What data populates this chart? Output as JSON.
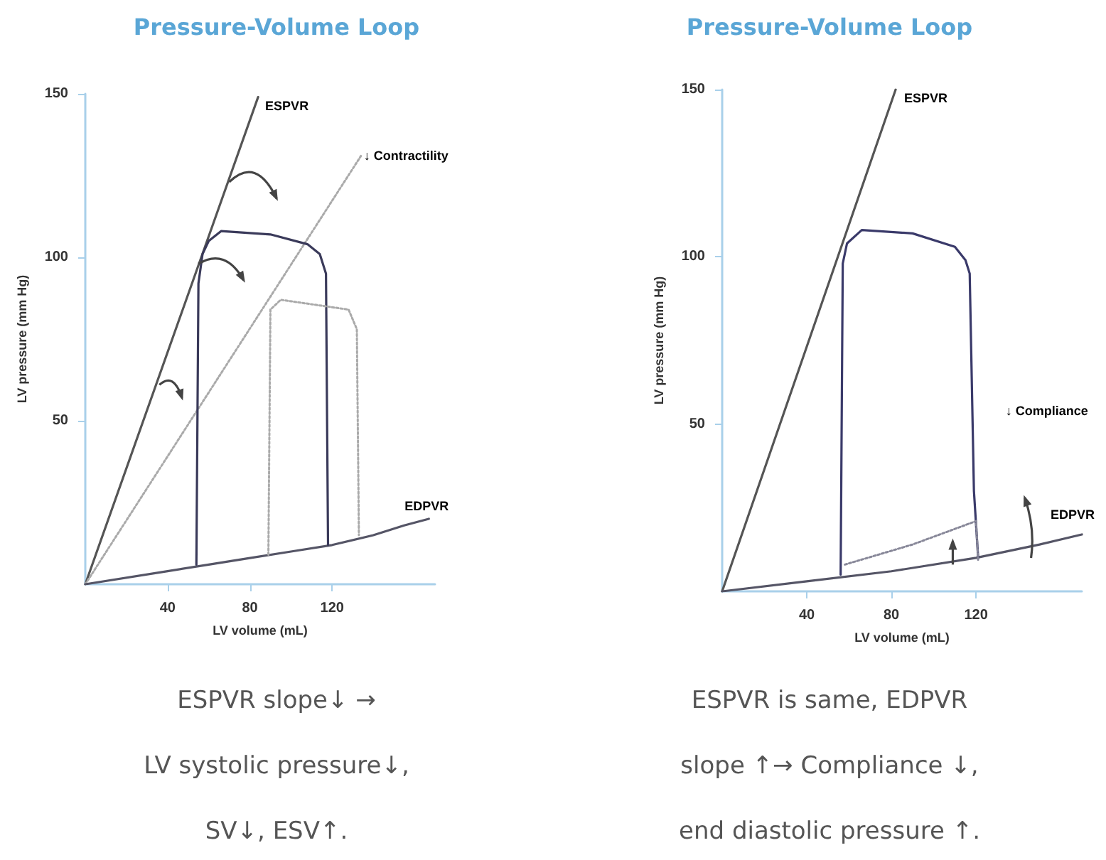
{
  "chart_data": [
    {
      "type": "line",
      "title": "Pressure-Volume Loop",
      "xlabel": "LV volume (mL)",
      "ylabel": "LV pressure (mm Hg)",
      "xlim": [
        0,
        170
      ],
      "ylim": [
        0,
        150
      ],
      "xticks": [
        40,
        80,
        120
      ],
      "yticks": [
        50,
        100,
        150
      ],
      "grid": false,
      "marker": "none",
      "line_style": "solid",
      "series": [
        {
          "color": "#555555",
          "x": [
            0,
            84
          ],
          "values": [
            0,
            149
          ]
        },
        {
          "color": "#aaaaaa",
          "line_style": "dotted",
          "x": [
            0,
            134
          ],
          "values": [
            0,
            131
          ]
        },
        {
          "color": "#555566",
          "x": [
            0,
            40,
            60,
            80,
            100,
            120,
            140,
            155,
            167
          ],
          "values": [
            0,
            4,
            6,
            8,
            10,
            12,
            15,
            18,
            20
          ]
        },
        {
          "color": "#3a3a5a",
          "x": [
            54,
            55,
            57,
            60,
            66,
            90,
            108,
            114,
            117,
            118
          ],
          "values": [
            6,
            92,
            101,
            105,
            108,
            107,
            104,
            101,
            95,
            12
          ]
        },
        {
          "color": "#aaaaaa",
          "line_style": "dotted",
          "x": [
            89,
            90,
            95,
            128,
            132,
            133
          ],
          "values": [
            9,
            84,
            87,
            84,
            78,
            15
          ]
        }
      ],
      "annotations": [
        {
          "text": "ESPVR",
          "x": 84,
          "y": 149
        },
        {
          "text": "↓ Contractility",
          "x": 134,
          "y": 131
        },
        {
          "text": "EDPVR",
          "x": 167,
          "y": 20
        },
        "ESPVR slope↓ →\nLV systolic pressure↓,\nSV↓, ESV↑."
      ]
    },
    {
      "type": "line",
      "title": "Pressure-Volume Loop",
      "xlabel": "LV volume (mL)",
      "ylabel": "LV pressure (mm Hg)",
      "xlim": [
        0,
        170
      ],
      "ylim": [
        0,
        150
      ],
      "xticks": [
        40,
        80,
        120
      ],
      "yticks": [
        50,
        100,
        150
      ],
      "grid": false,
      "marker": "none",
      "line_style": "solid",
      "series": [
        {
          "color": "#555555",
          "x": [
            0,
            82
          ],
          "values": [
            0,
            150
          ]
        },
        {
          "color": "#555566",
          "x": [
            0,
            40,
            80,
            120,
            150,
            170
          ],
          "values": [
            0,
            3,
            6,
            10,
            14,
            17
          ]
        },
        {
          "color": "#3a3a6a",
          "x": [
            56,
            57,
            59,
            66,
            90,
            110,
            115,
            117,
            119,
            121
          ],
          "values": [
            5,
            98,
            104,
            108,
            107,
            103,
            99,
            95,
            30,
            10
          ]
        },
        {
          "color": "#888899",
          "line_style": "dotted",
          "x": [
            58,
            90,
            120,
            121
          ],
          "values": [
            8,
            14,
            21,
            9
          ]
        }
      ],
      "annotations": [
        {
          "text": "ESPVR",
          "x": 82,
          "y": 150
        },
        "↓ Compliance",
        {
          "text": "EDPVR",
          "x": 170,
          "y": 17
        },
        "ESPVR is same, EDPVR\nslope ↑→ Compliance ↓,\nend diastolic pressure ↑."
      ]
    }
  ]
}
